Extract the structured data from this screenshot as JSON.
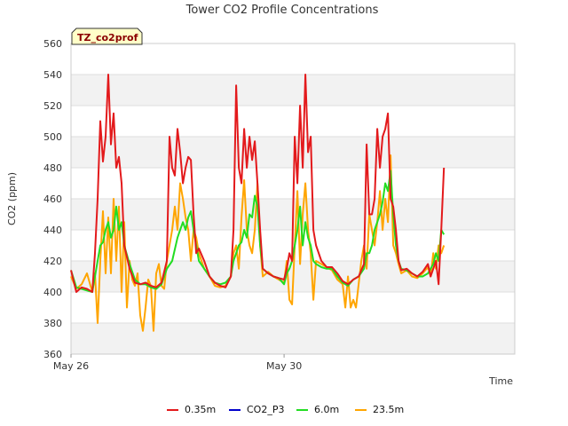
{
  "chart_data": {
    "type": "line",
    "title": "Tower CO2 Profile Concentrations",
    "xlabel": "Time",
    "ylabel": "CO2 (ppm)",
    "badge": "TZ_co2prof",
    "ylim": [
      360,
      560
    ],
    "yticks": [
      360,
      380,
      400,
      420,
      440,
      460,
      480,
      500,
      520,
      540,
      560
    ],
    "xlim": [
      0,
      8.33
    ],
    "xticks": [
      {
        "value": 0,
        "label": "May 26"
      },
      {
        "value": 4,
        "label": "May 30"
      }
    ],
    "grid": true,
    "legend_position": "bottom",
    "series": [
      {
        "name": "0.35m",
        "color": "#e31a1c",
        "points": [
          [
            0.0,
            414
          ],
          [
            0.1,
            400
          ],
          [
            0.2,
            403
          ],
          [
            0.3,
            402
          ],
          [
            0.4,
            400
          ],
          [
            0.45,
            425
          ],
          [
            0.5,
            460
          ],
          [
            0.55,
            510
          ],
          [
            0.6,
            484
          ],
          [
            0.65,
            500
          ],
          [
            0.7,
            540
          ],
          [
            0.75,
            495
          ],
          [
            0.8,
            515
          ],
          [
            0.85,
            480
          ],
          [
            0.9,
            487
          ],
          [
            0.95,
            470
          ],
          [
            1.0,
            430
          ],
          [
            1.1,
            415
          ],
          [
            1.2,
            406
          ],
          [
            1.3,
            405
          ],
          [
            1.4,
            406
          ],
          [
            1.5,
            404
          ],
          [
            1.6,
            403
          ],
          [
            1.7,
            406
          ],
          [
            1.8,
            420
          ],
          [
            1.85,
            500
          ],
          [
            1.9,
            480
          ],
          [
            1.95,
            475
          ],
          [
            2.0,
            505
          ],
          [
            2.05,
            490
          ],
          [
            2.1,
            470
          ],
          [
            2.15,
            480
          ],
          [
            2.2,
            487
          ],
          [
            2.25,
            485
          ],
          [
            2.3,
            450
          ],
          [
            2.35,
            425
          ],
          [
            2.4,
            428
          ],
          [
            2.5,
            420
          ],
          [
            2.6,
            410
          ],
          [
            2.7,
            406
          ],
          [
            2.8,
            404
          ],
          [
            2.9,
            403
          ],
          [
            3.0,
            410
          ],
          [
            3.05,
            440
          ],
          [
            3.1,
            533
          ],
          [
            3.15,
            480
          ],
          [
            3.2,
            470
          ],
          [
            3.25,
            505
          ],
          [
            3.3,
            480
          ],
          [
            3.35,
            500
          ],
          [
            3.4,
            485
          ],
          [
            3.45,
            497
          ],
          [
            3.5,
            470
          ],
          [
            3.55,
            440
          ],
          [
            3.6,
            415
          ],
          [
            3.7,
            412
          ],
          [
            3.8,
            410
          ],
          [
            3.9,
            409
          ],
          [
            4.0,
            408
          ],
          [
            4.05,
            415
          ],
          [
            4.1,
            425
          ],
          [
            4.15,
            420
          ],
          [
            4.2,
            500
          ],
          [
            4.25,
            470
          ],
          [
            4.3,
            520
          ],
          [
            4.35,
            480
          ],
          [
            4.4,
            540
          ],
          [
            4.45,
            490
          ],
          [
            4.5,
            500
          ],
          [
            4.55,
            440
          ],
          [
            4.6,
            430
          ],
          [
            4.7,
            420
          ],
          [
            4.8,
            416
          ],
          [
            4.9,
            416
          ],
          [
            5.0,
            412
          ],
          [
            5.1,
            407
          ],
          [
            5.2,
            405
          ],
          [
            5.3,
            408
          ],
          [
            5.4,
            410
          ],
          [
            5.5,
            418
          ],
          [
            5.55,
            495
          ],
          [
            5.6,
            450
          ],
          [
            5.65,
            450
          ],
          [
            5.7,
            460
          ],
          [
            5.75,
            505
          ],
          [
            5.8,
            480
          ],
          [
            5.85,
            500
          ],
          [
            5.9,
            505
          ],
          [
            5.95,
            515
          ],
          [
            6.0,
            460
          ],
          [
            6.05,
            455
          ],
          [
            6.1,
            440
          ],
          [
            6.15,
            420
          ],
          [
            6.2,
            414
          ],
          [
            6.3,
            415
          ],
          [
            6.4,
            412
          ],
          [
            6.5,
            410
          ],
          [
            6.6,
            413
          ],
          [
            6.7,
            418
          ],
          [
            6.75,
            410
          ],
          [
            6.8,
            415
          ],
          [
            6.85,
            420
          ],
          [
            6.9,
            405
          ],
          [
            6.95,
            440
          ],
          [
            7.0,
            480
          ]
        ]
      },
      {
        "name": "CO2_P3",
        "color": "#0000cc",
        "points": []
      },
      {
        "name": "6.0m",
        "color": "#22dd22",
        "points": [
          [
            0.0,
            414
          ],
          [
            0.1,
            403
          ],
          [
            0.2,
            402
          ],
          [
            0.3,
            401
          ],
          [
            0.4,
            400
          ],
          [
            0.45,
            410
          ],
          [
            0.5,
            420
          ],
          [
            0.55,
            430
          ],
          [
            0.6,
            432
          ],
          [
            0.65,
            440
          ],
          [
            0.7,
            445
          ],
          [
            0.75,
            435
          ],
          [
            0.8,
            440
          ],
          [
            0.85,
            455
          ],
          [
            0.9,
            440
          ],
          [
            0.95,
            445
          ],
          [
            1.0,
            430
          ],
          [
            1.1,
            418
          ],
          [
            1.2,
            408
          ],
          [
            1.3,
            405
          ],
          [
            1.4,
            405
          ],
          [
            1.5,
            403
          ],
          [
            1.6,
            402
          ],
          [
            1.7,
            405
          ],
          [
            1.8,
            415
          ],
          [
            1.9,
            420
          ],
          [
            2.0,
            435
          ],
          [
            2.05,
            440
          ],
          [
            2.1,
            445
          ],
          [
            2.15,
            440
          ],
          [
            2.2,
            448
          ],
          [
            2.25,
            452
          ],
          [
            2.3,
            440
          ],
          [
            2.35,
            430
          ],
          [
            2.4,
            420
          ],
          [
            2.5,
            415
          ],
          [
            2.6,
            410
          ],
          [
            2.7,
            406
          ],
          [
            2.8,
            405
          ],
          [
            2.9,
            406
          ],
          [
            3.0,
            410
          ],
          [
            3.05,
            420
          ],
          [
            3.1,
            425
          ],
          [
            3.15,
            430
          ],
          [
            3.2,
            432
          ],
          [
            3.25,
            440
          ],
          [
            3.3,
            435
          ],
          [
            3.35,
            450
          ],
          [
            3.4,
            448
          ],
          [
            3.45,
            462
          ],
          [
            3.5,
            455
          ],
          [
            3.55,
            430
          ],
          [
            3.6,
            415
          ],
          [
            3.7,
            412
          ],
          [
            3.8,
            410
          ],
          [
            3.9,
            409
          ],
          [
            4.0,
            405
          ],
          [
            4.05,
            412
          ],
          [
            4.1,
            415
          ],
          [
            4.15,
            420
          ],
          [
            4.2,
            430
          ],
          [
            4.25,
            440
          ],
          [
            4.3,
            455
          ],
          [
            4.35,
            430
          ],
          [
            4.4,
            445
          ],
          [
            4.45,
            435
          ],
          [
            4.5,
            430
          ],
          [
            4.55,
            420
          ],
          [
            4.6,
            418
          ],
          [
            4.7,
            416
          ],
          [
            4.8,
            415
          ],
          [
            4.9,
            415
          ],
          [
            5.0,
            410
          ],
          [
            5.1,
            406
          ],
          [
            5.2,
            404
          ],
          [
            5.3,
            408
          ],
          [
            5.4,
            410
          ],
          [
            5.5,
            415
          ],
          [
            5.55,
            425
          ],
          [
            5.6,
            425
          ],
          [
            5.65,
            430
          ],
          [
            5.7,
            440
          ],
          [
            5.75,
            445
          ],
          [
            5.8,
            450
          ],
          [
            5.85,
            458
          ],
          [
            5.9,
            470
          ],
          [
            5.95,
            465
          ],
          [
            6.0,
            478
          ],
          [
            6.05,
            450
          ],
          [
            6.1,
            430
          ],
          [
            6.15,
            420
          ],
          [
            6.2,
            415
          ],
          [
            6.3,
            414
          ],
          [
            6.4,
            412
          ],
          [
            6.5,
            410
          ],
          [
            6.6,
            410
          ],
          [
            6.7,
            412
          ],
          [
            6.75,
            415
          ],
          [
            6.8,
            418
          ],
          [
            6.85,
            425
          ],
          [
            6.9,
            420
          ],
          [
            6.95,
            440
          ],
          [
            7.0,
            437
          ]
        ]
      },
      {
        "name": "23.5m",
        "color": "#ffa500",
        "points": [
          [
            0.0,
            410
          ],
          [
            0.1,
            402
          ],
          [
            0.2,
            405
          ],
          [
            0.3,
            412
          ],
          [
            0.4,
            400
          ],
          [
            0.45,
            412
          ],
          [
            0.5,
            380
          ],
          [
            0.55,
            420
          ],
          [
            0.6,
            452
          ],
          [
            0.65,
            412
          ],
          [
            0.7,
            448
          ],
          [
            0.75,
            412
          ],
          [
            0.8,
            460
          ],
          [
            0.85,
            420
          ],
          [
            0.9,
            455
          ],
          [
            0.95,
            400
          ],
          [
            1.0,
            445
          ],
          [
            1.05,
            390
          ],
          [
            1.1,
            420
          ],
          [
            1.15,
            408
          ],
          [
            1.2,
            404
          ],
          [
            1.25,
            412
          ],
          [
            1.3,
            385
          ],
          [
            1.35,
            375
          ],
          [
            1.4,
            390
          ],
          [
            1.45,
            408
          ],
          [
            1.5,
            404
          ],
          [
            1.55,
            375
          ],
          [
            1.6,
            412
          ],
          [
            1.65,
            418
          ],
          [
            1.7,
            404
          ],
          [
            1.75,
            402
          ],
          [
            1.8,
            420
          ],
          [
            1.85,
            430
          ],
          [
            1.9,
            440
          ],
          [
            1.95,
            455
          ],
          [
            2.0,
            440
          ],
          [
            2.05,
            470
          ],
          [
            2.1,
            460
          ],
          [
            2.15,
            448
          ],
          [
            2.2,
            440
          ],
          [
            2.25,
            420
          ],
          [
            2.3,
            440
          ],
          [
            2.35,
            435
          ],
          [
            2.4,
            425
          ],
          [
            2.5,
            415
          ],
          [
            2.6,
            410
          ],
          [
            2.7,
            404
          ],
          [
            2.8,
            403
          ],
          [
            2.9,
            404
          ],
          [
            3.0,
            410
          ],
          [
            3.05,
            425
          ],
          [
            3.1,
            430
          ],
          [
            3.15,
            415
          ],
          [
            3.2,
            448
          ],
          [
            3.25,
            472
          ],
          [
            3.3,
            440
          ],
          [
            3.35,
            430
          ],
          [
            3.4,
            425
          ],
          [
            3.45,
            440
          ],
          [
            3.5,
            470
          ],
          [
            3.55,
            430
          ],
          [
            3.6,
            410
          ],
          [
            3.7,
            413
          ],
          [
            3.8,
            410
          ],
          [
            3.9,
            408
          ],
          [
            4.0,
            406
          ],
          [
            4.05,
            420
          ],
          [
            4.1,
            395
          ],
          [
            4.15,
            392
          ],
          [
            4.2,
            430
          ],
          [
            4.25,
            465
          ],
          [
            4.3,
            418
          ],
          [
            4.35,
            450
          ],
          [
            4.4,
            470
          ],
          [
            4.45,
            440
          ],
          [
            4.5,
            425
          ],
          [
            4.55,
            395
          ],
          [
            4.6,
            420
          ],
          [
            4.7,
            418
          ],
          [
            4.8,
            416
          ],
          [
            4.9,
            414
          ],
          [
            5.0,
            408
          ],
          [
            5.1,
            405
          ],
          [
            5.15,
            390
          ],
          [
            5.2,
            410
          ],
          [
            5.25,
            390
          ],
          [
            5.3,
            395
          ],
          [
            5.35,
            390
          ],
          [
            5.4,
            405
          ],
          [
            5.45,
            420
          ],
          [
            5.5,
            430
          ],
          [
            5.55,
            415
          ],
          [
            5.6,
            450
          ],
          [
            5.65,
            440
          ],
          [
            5.7,
            430
          ],
          [
            5.75,
            445
          ],
          [
            5.8,
            465
          ],
          [
            5.85,
            440
          ],
          [
            5.9,
            460
          ],
          [
            5.95,
            445
          ],
          [
            6.0,
            488
          ],
          [
            6.05,
            430
          ],
          [
            6.1,
            425
          ],
          [
            6.15,
            418
          ],
          [
            6.2,
            412
          ],
          [
            6.3,
            414
          ],
          [
            6.4,
            410
          ],
          [
            6.5,
            409
          ],
          [
            6.6,
            412
          ],
          [
            6.7,
            416
          ],
          [
            6.75,
            410
          ],
          [
            6.8,
            425
          ],
          [
            6.85,
            415
          ],
          [
            6.9,
            430
          ],
          [
            6.95,
            425
          ],
          [
            7.0,
            430
          ]
        ]
      }
    ]
  }
}
